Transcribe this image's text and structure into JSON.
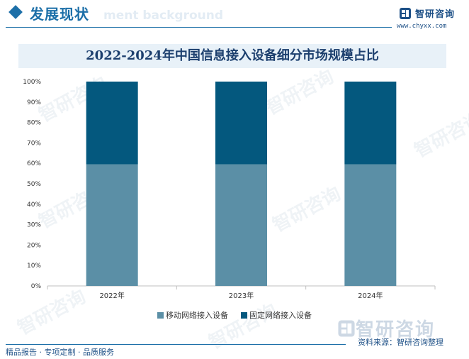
{
  "header": {
    "section_title": "发展现状",
    "ghost_text": "ment background",
    "brand_name": "智研咨询",
    "brand_url": "www.chyxx.com"
  },
  "chart_data": {
    "type": "bar",
    "stacked": true,
    "title": "2022-2024年中国信息接入设备细分市场规模占比",
    "categories": [
      "2022年",
      "2023年",
      "2024年"
    ],
    "series": [
      {
        "name": "移动网络接入设备",
        "values": [
          59.5,
          59.5,
          59.5
        ],
        "color": "#5b8fa6"
      },
      {
        "name": "固定网络接入设备",
        "values": [
          40.5,
          40.5,
          40.5
        ],
        "color": "#04587e"
      }
    ],
    "ylim": [
      0,
      100
    ],
    "ytick_labels": [
      "0%",
      "10%",
      "20%",
      "30%",
      "40%",
      "50%",
      "60%",
      "70%",
      "80%",
      "90%",
      "100%"
    ],
    "legend_position": "bottom",
    "grid": false
  },
  "source": "资料来源：智研咨询整理",
  "footer": {
    "text": "精品报告 · 专项定制 · 品质服务"
  },
  "watermark": {
    "text": "智研咨询"
  }
}
